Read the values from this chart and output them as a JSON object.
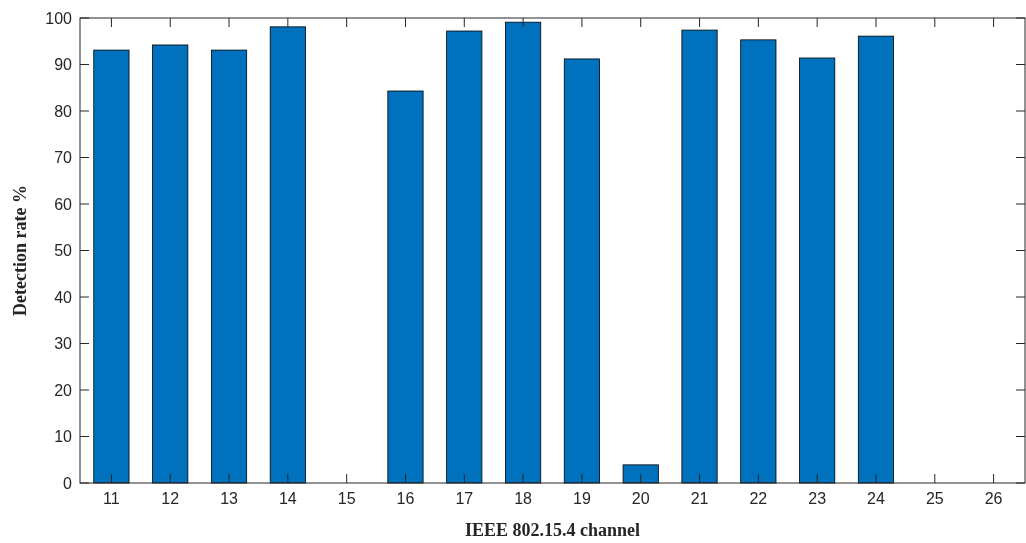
{
  "chart_data": {
    "type": "bar",
    "xlabel": "IEEE 802.15.4 channel",
    "ylabel": "Detection rate %",
    "categories": [
      "11",
      "12",
      "13",
      "14",
      "15",
      "16",
      "17",
      "18",
      "19",
      "20",
      "21",
      "22",
      "23",
      "24",
      "25",
      "26"
    ],
    "values": [
      93.1,
      94.2,
      93.1,
      98.1,
      0,
      84.3,
      97.2,
      99.1,
      91.2,
      3.9,
      97.4,
      95.3,
      91.4,
      96.1,
      0,
      0
    ],
    "color": "#0072bd",
    "ylim": [
      0,
      100
    ],
    "yticks": [
      0,
      10,
      20,
      30,
      40,
      50,
      60,
      70,
      80,
      90,
      100
    ],
    "grid": false
  }
}
